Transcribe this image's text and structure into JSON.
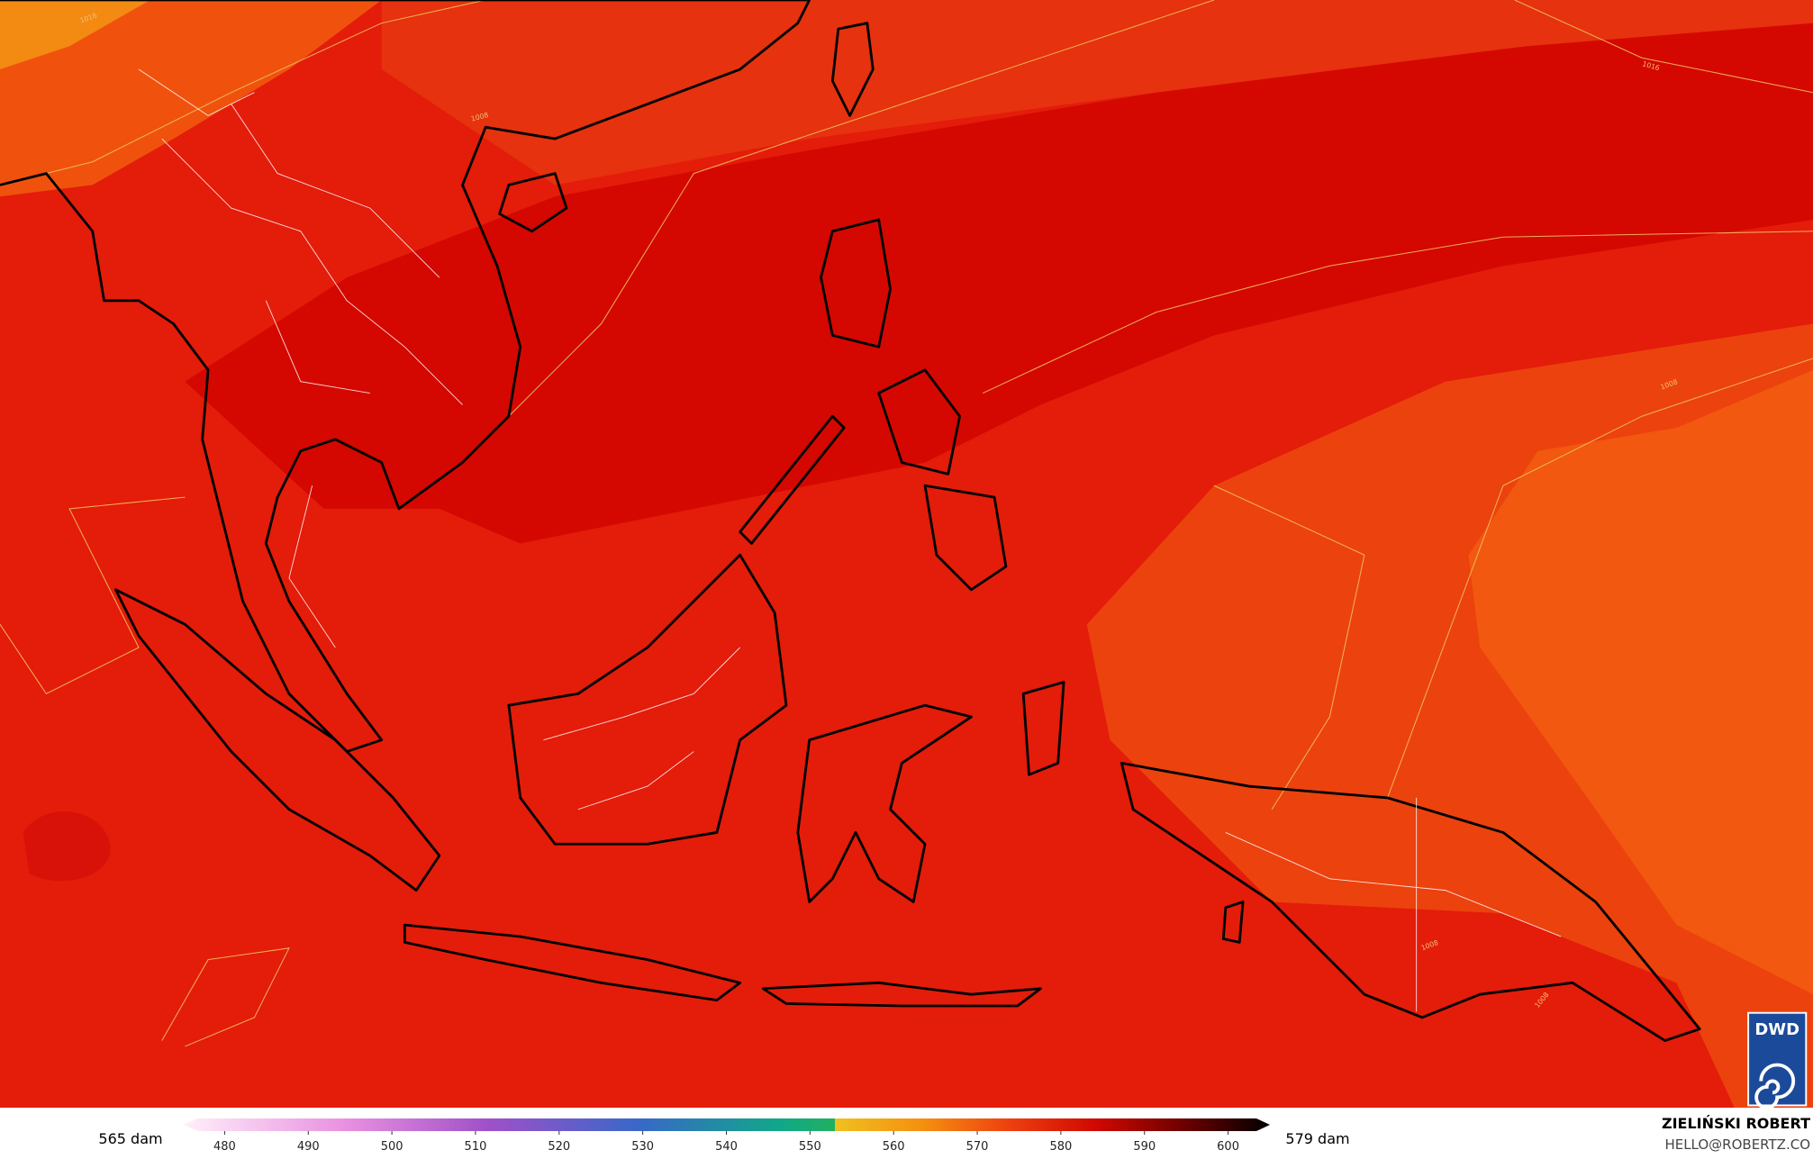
{
  "map": {
    "contour_labels": [
      "1016",
      "1008",
      "1008",
      "1008",
      "1008",
      "1016"
    ]
  },
  "legend": {
    "left_label": "565 dam",
    "right_label": "579 dam",
    "ticks": [
      480,
      490,
      500,
      510,
      520,
      530,
      540,
      550,
      560,
      570,
      580,
      590,
      600
    ],
    "range": [
      475,
      605
    ]
  },
  "credit": {
    "name": "ZIELIŃSKI ROBERT",
    "email": "HELLO@ROBERTZ.CO"
  },
  "logo": "DWD"
}
